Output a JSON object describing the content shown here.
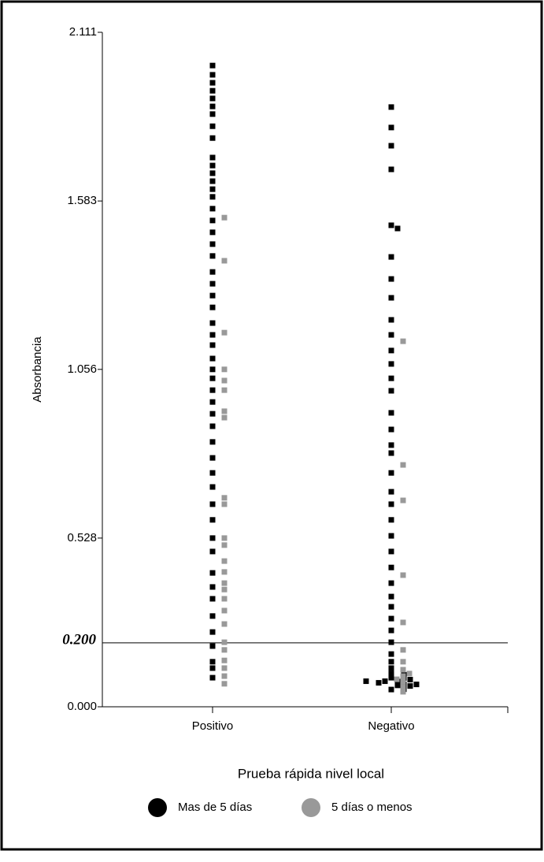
{
  "chart_data": {
    "type": "strip",
    "y_label": "Absorbancia",
    "x_label": "Prueba rápida nivel local",
    "categories": [
      "Positivo",
      "Negativo"
    ],
    "ylim": [
      0,
      2.111
    ],
    "yticks": [
      {
        "value": 0,
        "label": "0.000"
      },
      0.528,
      1.056,
      1.583,
      2.111
    ],
    "threshold": {
      "value": 0.2,
      "label": "0.200"
    },
    "series": [
      {
        "name": "Mas de 5 días",
        "color": "#000000",
        "values": [
          [
            2.007,
            1.978,
            1.953,
            1.928,
            1.904,
            1.879,
            1.855,
            1.817,
            1.78,
            1.719,
            1.694,
            1.67,
            1.645,
            1.62,
            1.596,
            1.559,
            1.522,
            1.485,
            1.448,
            1.411,
            1.361,
            1.324,
            1.287,
            1.25,
            1.201,
            1.164,
            1.132,
            1.09,
            1.056,
            1.028,
            0.991,
            0.954,
            0.917,
            0.878,
            0.829,
            0.779,
            0.732,
            0.688,
            0.634,
            0.585,
            0.528,
            0.486,
            0.419,
            0.375,
            0.338,
            0.284,
            0.234,
            0.19,
            0.141,
            0.121,
            0.091
          ],
          [
            1.877,
            1.813,
            1.756,
            1.682,
            1.507,
            1.497,
            1.408,
            1.339,
            1.28,
            1.211,
            1.164,
            1.115,
            1.073,
            1.028,
            0.989,
            0.92,
            0.868,
            0.819,
            0.794,
            0.732,
            0.673,
            0.634,
            0.585,
            0.535,
            0.486,
            0.436,
            0.387,
            0.345,
            0.313,
            0.276,
            0.239,
            0.202,
            0.165,
            0.141,
            0.121,
            0.104,
            0.091,
            0.079,
            0.067,
            0.054,
            0.08,
            0.07,
            0.09,
            0.075,
            0.06,
            0.085,
            0.1,
            0.065,
            0.055,
            0.07,
            0.08
          ]
        ]
      },
      {
        "name": "5 días o menos",
        "color": "#999999",
        "values": [
          [
            1.531,
            1.396,
            1.171,
            1.056,
            1.021,
            0.991,
            0.925,
            0.905,
            0.654,
            0.634,
            0.528,
            0.506,
            0.456,
            0.422,
            0.387,
            0.367,
            0.338,
            0.301,
            0.259,
            0.202,
            0.178,
            0.145,
            0.121,
            0.096,
            0.072
          ],
          [
            1.144,
            0.757,
            0.646,
            0.412,
            0.264,
            0.178,
            0.141,
            0.116,
            0.096,
            0.079,
            0.062,
            0.047,
            0.104,
            0.086
          ]
        ]
      }
    ]
  }
}
